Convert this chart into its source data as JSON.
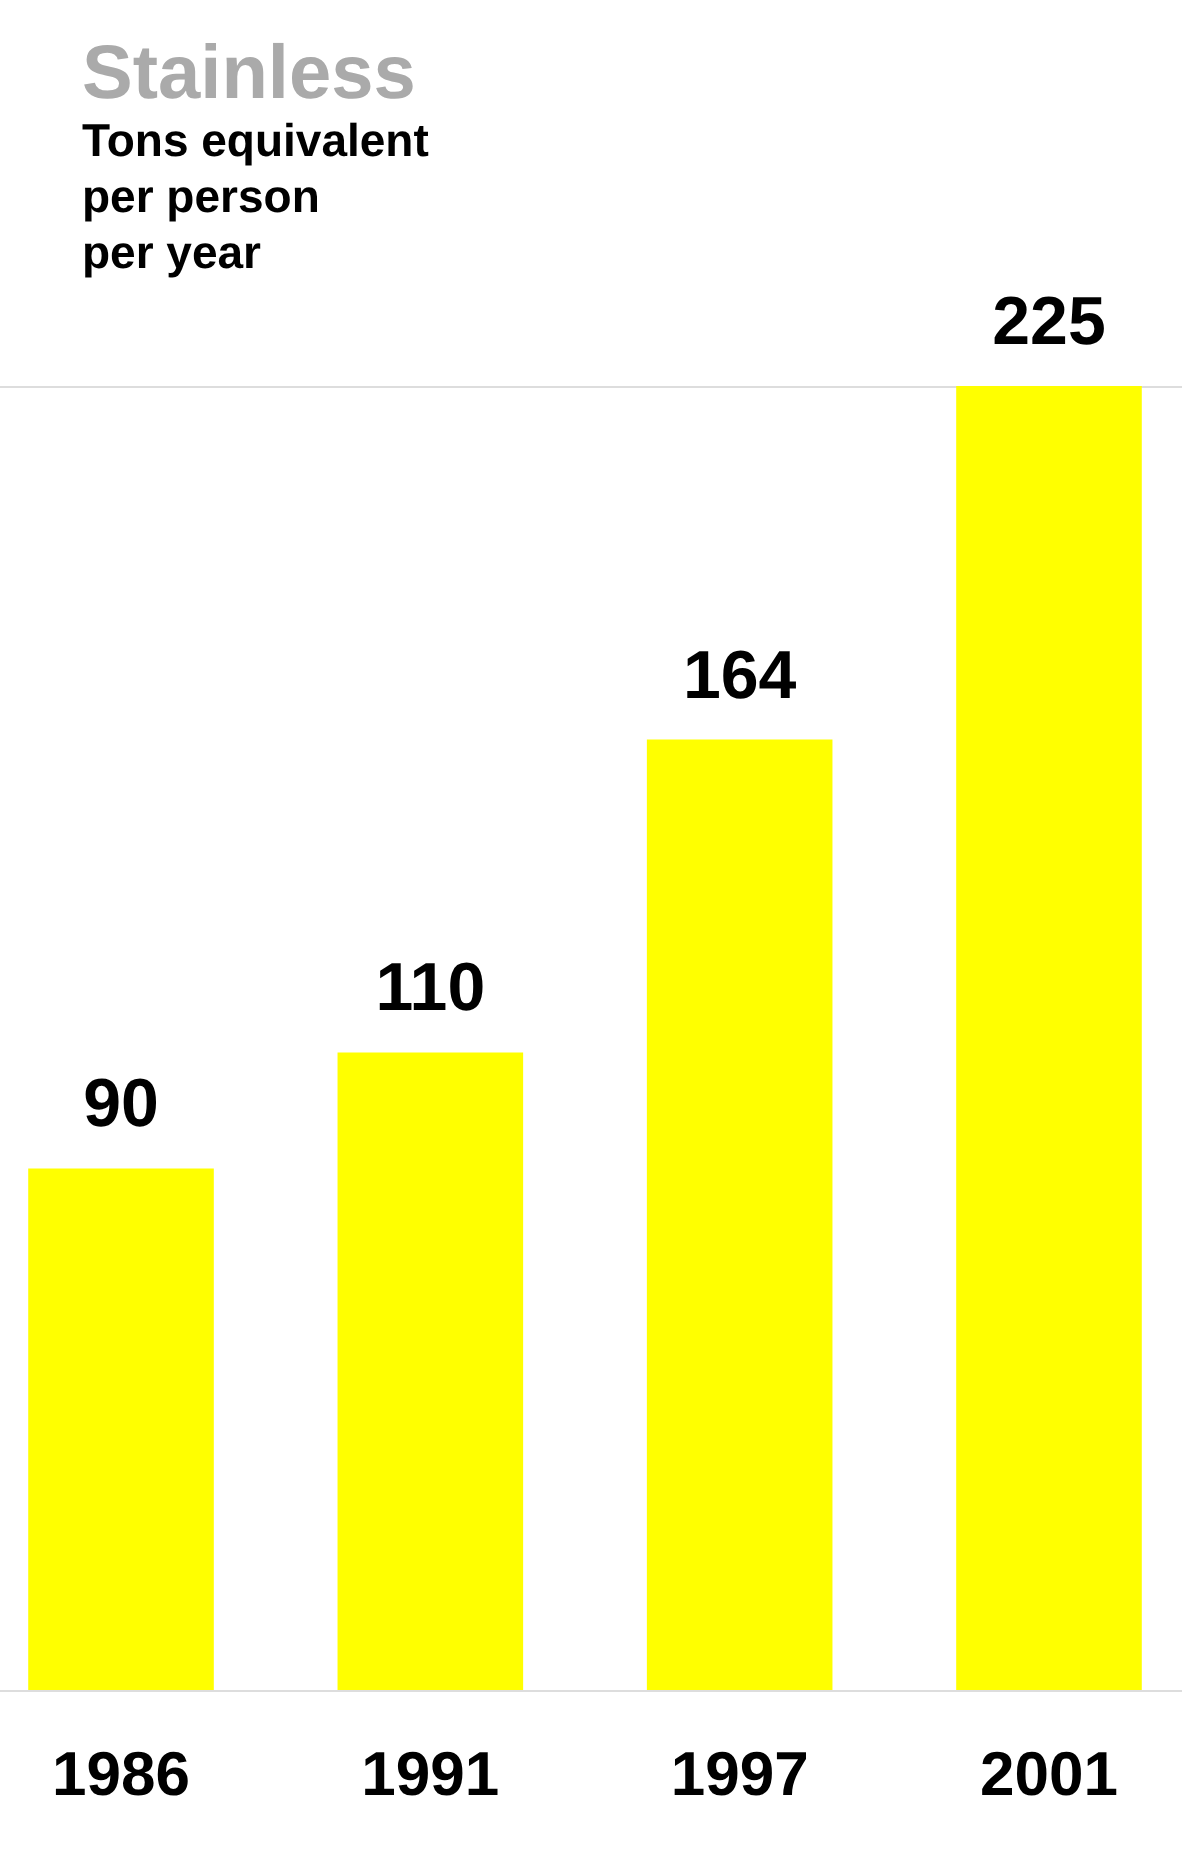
{
  "chart_data": {
    "type": "bar",
    "title": "Stainless",
    "subtitle": "Tons equivalent\nper person\nper year",
    "categories": [
      "1986",
      "1991",
      "1997",
      "2001"
    ],
    "values": [
      90,
      110,
      164,
      225
    ],
    "color": "#ffff00",
    "data_labels": true,
    "tick_labels": "x"
  }
}
